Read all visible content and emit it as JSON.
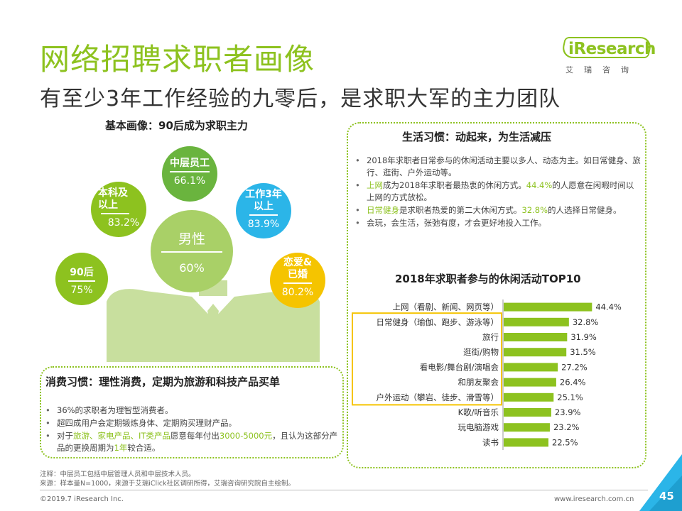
{
  "title": "网络招聘求职者画像",
  "subtitle": "有至少3年工作经验的九零后，是求职大军的主力团队",
  "logo": {
    "brand": "iResearch",
    "cn": "艾瑞咨询"
  },
  "profile": {
    "heading": "基本画像：90后成为求职主力",
    "bubbles": [
      {
        "label": "中层员工",
        "value": "66.1%",
        "color": "#6AB43E"
      },
      {
        "label": "本科及以上",
        "value": "83.2%",
        "color": "#8DC21F"
      },
      {
        "label": "工作3年以上",
        "value": "83.9%",
        "color": "#2BB5E8"
      },
      {
        "label": "男性",
        "value": "60%",
        "color": "#A9D067"
      },
      {
        "label": "90后",
        "value": "75%",
        "color": "#8DC21F"
      },
      {
        "label": "恋爱&已婚",
        "value": "80.2%",
        "color": "#F5C400"
      }
    ]
  },
  "habits": {
    "title": "生活习惯：动起来，为生活减压",
    "b1": "2018年求职者日常参与的休闲活动主要以多人、动态为主。如日常健身、旅行、逛街、户外运动等。",
    "b2_hl1": "上网",
    "b2_t1": "成为2018年求职者最热衷的休闲方式。",
    "b2_hl2": "44.4%",
    "b2_t2": "的人愿意在闲暇时间以上网的方式放松。",
    "b3_hl1": "日常健身",
    "b3_t1": "是求职者热爱的第二大休闲方式。",
    "b3_hl2": "32.8%",
    "b3_t2": "的人选择日常健身。",
    "b4": "会玩，会生活，张弛有度，才会更好地投入工作。"
  },
  "chart_data": {
    "type": "bar",
    "title": "2018年求职者参与的休闲活动TOP10",
    "categories": [
      "上网（看剧、新闻、网页等）",
      "日常健身（瑜伽、跑步、游泳等）",
      "旅行",
      "逛街/购物",
      "看电影/舞台剧/演唱会",
      "和朋友聚会",
      "户外运动（攀岩、徒步、滑雪等）",
      "K歌/听音乐",
      "玩电脑游戏",
      "读书"
    ],
    "values": [
      44.4,
      32.8,
      31.9,
      31.5,
      27.2,
      26.4,
      25.1,
      23.9,
      23.2,
      22.5
    ],
    "value_labels": [
      "44.4%",
      "32.8%",
      "31.9%",
      "31.5%",
      "27.2%",
      "26.4%",
      "25.1%",
      "23.9%",
      "23.2%",
      "22.5%"
    ],
    "orientation": "horizontal",
    "highlighted_range": [
      1,
      6
    ],
    "bar_color": "#8DC21F",
    "highlight_color": "#F5C400",
    "xlim": [
      0,
      50
    ]
  },
  "consume": {
    "title": "消费习惯：理性消费，定期为旅游和科技产品买单",
    "b1": "36%的求职者为理智型消费者。",
    "b2": "超四成用户会定期锻炼身体、定期购买理财产品。",
    "b3_t1": "对于",
    "b3_hl1": "旅游、家电产品、IT类产品",
    "b3_t2": "愿意每年付出",
    "b3_hl2": "3000-5000元",
    "b3_t3": "，且认为这部分产品的更换周期为",
    "b3_hl3": "1年",
    "b3_t4": "较合适。"
  },
  "notes": {
    "n1": "注释：中层员工包括中层管理人员和中层技术人员。",
    "n2": "来源：样本量N=1000，来源于艾瑞iClick社区调研所得，艾瑞咨询研究院自主绘制。"
  },
  "footer": {
    "copyright": "©2019.7 iResearch Inc.",
    "site": "www.iresearch.com.cn",
    "page": "45"
  }
}
